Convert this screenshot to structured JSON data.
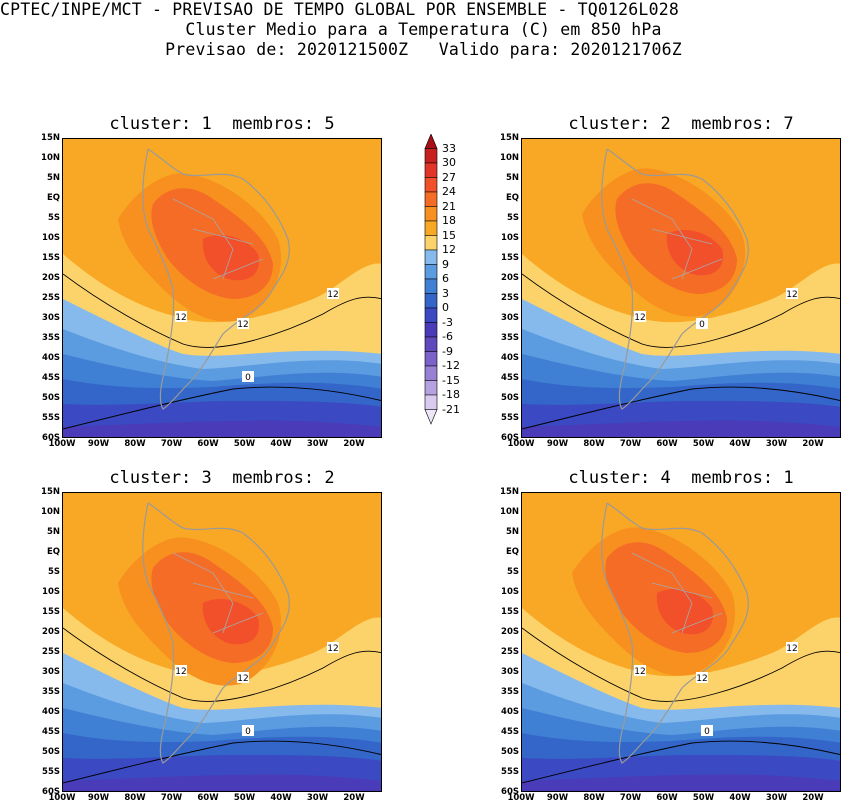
{
  "header": {
    "line1": "CPTEC/INPE/MCT - PREVISAO DE TEMPO GLOBAL POR ENSEMBLE - TQ0126L028",
    "line2": "Cluster Medio para a Temperatura (C) em 850 hPa",
    "line3": "Previsao de: 2020121500Z   Valido para: 2020121706Z"
  },
  "panels": [
    {
      "title": "cluster: 1  membros: 5",
      "contour_labels": [
        "12",
        "12",
        "12",
        "0"
      ]
    },
    {
      "title": "cluster: 2  membros: 7",
      "contour_labels": [
        "12",
        "12",
        "0"
      ]
    },
    {
      "title": "cluster: 3  membros: 2",
      "contour_labels": [
        "12",
        "12",
        "12",
        "0"
      ]
    },
    {
      "title": "cluster: 4  membros: 1",
      "contour_labels": [
        "12",
        "12",
        "12",
        "0"
      ]
    }
  ],
  "lat_labels": [
    "15N",
    "10N",
    "5N",
    "EQ",
    "5S",
    "10S",
    "15S",
    "20S",
    "25S",
    "30S",
    "35S",
    "40S",
    "45S",
    "50S",
    "55S",
    "60S"
  ],
  "lon_labels": [
    "100W",
    "90W",
    "80W",
    "70W",
    "60W",
    "50W",
    "40W",
    "30W",
    "20W"
  ],
  "colorbar": {
    "levels": [
      "33",
      "30",
      "27",
      "24",
      "21",
      "18",
      "15",
      "12",
      "9",
      "6",
      "3",
      "0",
      "-3",
      "-6",
      "-9",
      "-12",
      "-15",
      "-18",
      "-21"
    ],
    "colors": [
      "#a50f15",
      "#c8201e",
      "#e3342a",
      "#f1502a",
      "#f56c26",
      "#f7901f",
      "#f9a825",
      "#fcd36b",
      "#86b9ec",
      "#5b9be0",
      "#3f7fd4",
      "#3366c8",
      "#3b49c2",
      "#4a3cb8",
      "#6049bd",
      "#7a62c8",
      "#9880d4",
      "#b6a2e0",
      "#d8cbef",
      "#ede6f8"
    ]
  }
}
